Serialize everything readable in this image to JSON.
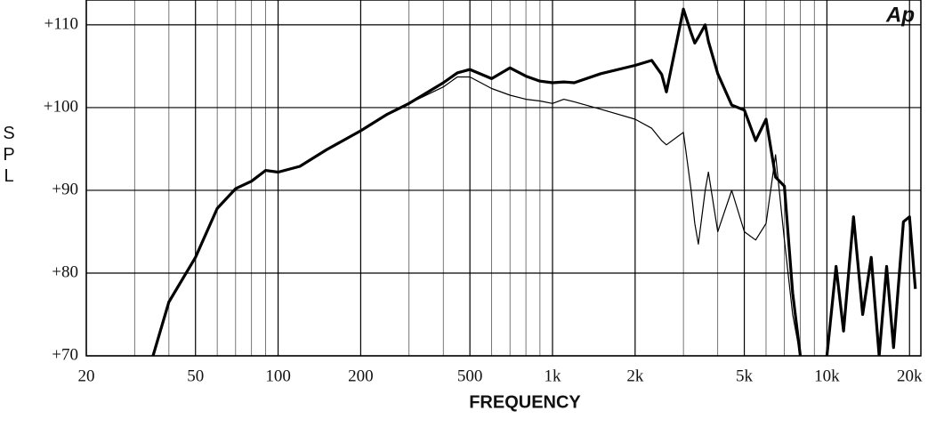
{
  "chart_data": {
    "type": "line",
    "logo": "Ap",
    "ylabel": "S P L",
    "xlabel": "FREQUENCY",
    "xscale": "log",
    "xlim": [
      20,
      22000
    ],
    "ylim": [
      70,
      113
    ],
    "xticks": [
      20,
      50,
      100,
      200,
      500,
      {
        "value": 1000,
        "label": "1k"
      },
      {
        "value": 2000,
        "label": "2k"
      },
      {
        "value": 5000,
        "label": "5k"
      },
      {
        "value": 10000,
        "label": "10k"
      },
      {
        "value": 20000,
        "label": "20k"
      }
    ],
    "xminor": [
      30,
      40,
      60,
      70,
      80,
      90,
      300,
      400,
      600,
      700,
      800,
      900,
      3000,
      4000,
      6000,
      7000,
      8000,
      9000
    ],
    "yticks": [
      {
        "value": 70,
        "label": "+70"
      },
      {
        "value": 80,
        "label": "+80"
      },
      {
        "value": 90,
        "label": "+90"
      },
      {
        "value": 100,
        "label": "+100"
      },
      {
        "value": 110,
        "label": "+110"
      }
    ],
    "grid": true,
    "x": [
      35,
      40,
      50,
      60,
      70,
      80,
      90,
      100,
      120,
      150,
      200,
      250,
      300,
      400,
      450,
      500,
      600,
      700,
      800,
      900,
      1000,
      1100,
      1200,
      1500,
      2000,
      2300,
      2500,
      2600,
      3000,
      3200,
      3300,
      3400,
      3600,
      3700,
      4000,
      4500,
      5000,
      5500,
      6000,
      6500,
      7000,
      7500,
      8000,
      9000,
      10000,
      10800,
      11500,
      12500,
      13500,
      14500,
      15500,
      16500,
      17500,
      19000,
      20000,
      21000
    ],
    "series": [
      {
        "color": "#000000",
        "line_width": 3.2,
        "values": [
          70,
          76.5,
          81.9,
          87.8,
          90.2,
          91.1,
          92.4,
          92.2,
          92.9,
          94.9,
          97.2,
          99.2,
          100.5,
          103,
          104.2,
          104.6,
          103.5,
          104.8,
          103.8,
          103.2,
          103,
          103.1,
          103,
          104.1,
          105.1,
          105.7,
          104,
          101.9,
          111.9,
          109,
          107.8,
          108.5,
          110,
          108,
          104.1,
          100.3,
          99.7,
          96,
          98.6,
          91.6,
          90.5,
          77.6,
          70,
          null,
          70,
          80.8,
          73,
          86.8,
          75,
          81.9,
          70,
          80.8,
          71,
          86.2,
          86.8,
          78.1
        ]
      },
      {
        "color": "#000000",
        "line_width": 1.2,
        "values": [
          70,
          76.5,
          81.9,
          87.8,
          90.2,
          91.1,
          92.4,
          92.2,
          92.9,
          94.9,
          97.2,
          99.2,
          100.5,
          102.5,
          103.7,
          103.7,
          102.3,
          101.5,
          101,
          100.8,
          100.5,
          101,
          100.7,
          99.8,
          98.6,
          97.5,
          96,
          95.5,
          97,
          90,
          86,
          83.5,
          90,
          92.2,
          85,
          90,
          85,
          84,
          86,
          94.3,
          84,
          75,
          70,
          null,
          null,
          null,
          null,
          null,
          null,
          null,
          null,
          null,
          null,
          null,
          null,
          null
        ]
      }
    ]
  }
}
